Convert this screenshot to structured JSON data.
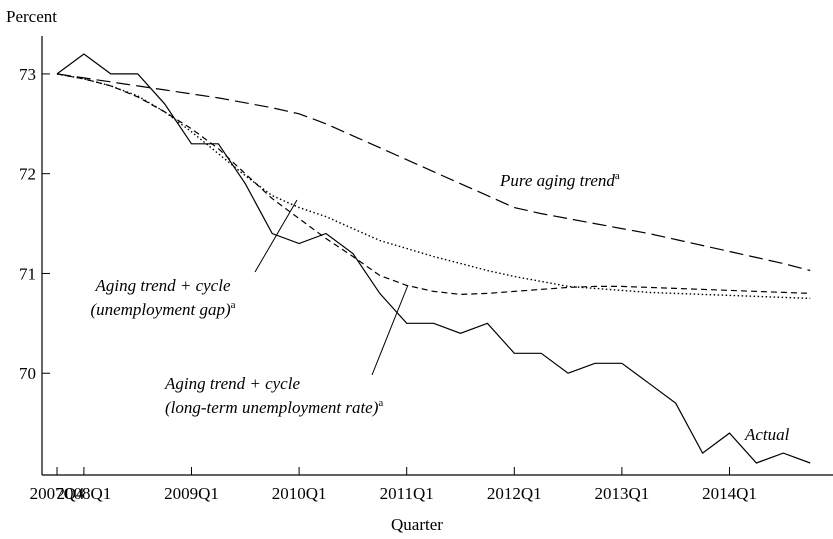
{
  "chart_data": {
    "type": "line",
    "y_label": "Percent",
    "x_label": "Quarter",
    "categories": [
      "2007Q4",
      "2008Q1",
      null,
      null,
      null,
      "2009Q1",
      null,
      null,
      null,
      "2010Q1",
      null,
      null,
      null,
      "2011Q1",
      null,
      null,
      null,
      "2012Q1",
      null,
      null,
      null,
      "2013Q1",
      null,
      null,
      null,
      "2014Q1",
      null,
      null,
      null
    ],
    "ylim": [
      68.98,
      73.38
    ],
    "yticks": [
      70,
      71,
      72,
      73
    ],
    "series": [
      {
        "label": [
          "Actual"
        ],
        "color": "#000000",
        "dash": "solid",
        "values": [
          73.0,
          73.2,
          73.0,
          73.0,
          72.7,
          72.3,
          72.3,
          71.9,
          71.4,
          71.3,
          71.4,
          71.2,
          70.8,
          70.5,
          70.5,
          70.4,
          70.5,
          70.2,
          70.2,
          70.0,
          70.1,
          70.1,
          69.9,
          69.7,
          69.2,
          69.4,
          69.1,
          69.2,
          69.1
        ]
      },
      {
        "label": [
          "Pure aging trend"
        ],
        "note": "a",
        "color": "#000000",
        "dash": "long",
        "values": [
          73.0,
          72.96,
          72.92,
          72.88,
          72.84,
          72.8,
          72.76,
          72.71,
          72.66,
          72.6,
          72.5,
          72.38,
          72.26,
          72.14,
          72.02,
          71.9,
          71.78,
          71.66,
          71.6,
          71.55,
          71.5,
          71.45,
          71.4,
          71.34,
          71.28,
          71.22,
          71.16,
          71.1,
          71.03
        ]
      },
      {
        "label": [
          "Aging trend + cycle",
          "(unemployment gap)"
        ],
        "note": "a",
        "color": "#000000",
        "dash": "dotted",
        "values": [
          73.0,
          72.95,
          72.88,
          72.78,
          72.62,
          72.42,
          72.2,
          71.98,
          71.78,
          71.66,
          71.57,
          71.45,
          71.33,
          71.25,
          71.17,
          71.1,
          71.03,
          70.97,
          70.92,
          70.87,
          70.85,
          70.83,
          70.81,
          70.8,
          70.79,
          70.78,
          70.77,
          70.76,
          70.75
        ]
      },
      {
        "label": [
          "Aging trend + cycle",
          "(long-term unemployment rate)"
        ],
        "note": "a",
        "color": "#000000",
        "dash": "short",
        "values": [
          73.0,
          72.95,
          72.88,
          72.77,
          72.62,
          72.45,
          72.25,
          72.0,
          71.75,
          71.55,
          71.35,
          71.17,
          70.98,
          70.88,
          70.82,
          70.79,
          70.8,
          70.82,
          70.84,
          70.86,
          70.87,
          70.87,
          70.86,
          70.85,
          70.84,
          70.83,
          70.82,
          70.81,
          70.8
        ]
      }
    ]
  }
}
